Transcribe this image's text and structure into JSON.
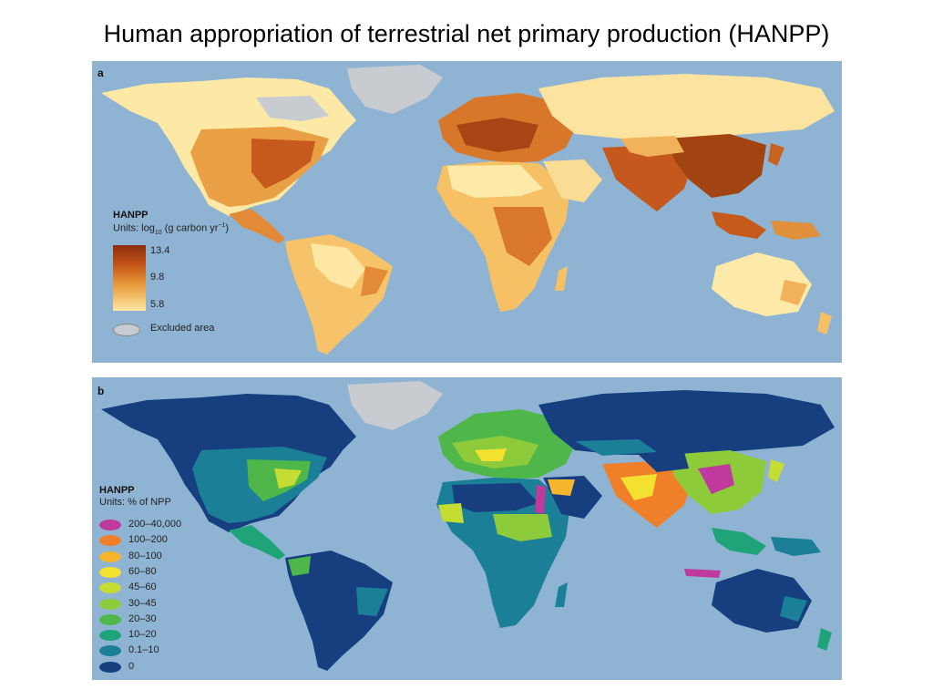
{
  "title": "Human appropriation of terrestrial net primary production (HANPP)",
  "panel_a": {
    "letter": "a",
    "legend_title": "HANPP",
    "units_prefix": "Units: log",
    "units_sub": "10",
    "units_mid": " (g carbon yr",
    "units_sup": "−1",
    "units_suffix": ")",
    "scale_labels": [
      "13.4",
      "9.8",
      "5.8"
    ],
    "excluded_label": "Excluded area",
    "colors": {
      "ocean": "#8fb4d3",
      "excluded": "#c8ccd1",
      "low": "#fde7a2",
      "mid": "#e99a3b",
      "high": "#8a2c0c"
    }
  },
  "panel_b": {
    "letter": "b",
    "legend_title": "HANPP",
    "units": "Units: % of NPP",
    "items": [
      {
        "label": "200–40,000",
        "color": "#c0399d"
      },
      {
        "label": "100–200",
        "color": "#f07f2a"
      },
      {
        "label": "80–100",
        "color": "#f5b52c"
      },
      {
        "label": "60–80",
        "color": "#f2e22f"
      },
      {
        "label": "45–60",
        "color": "#c5dc32"
      },
      {
        "label": "30–45",
        "color": "#8ecb3a"
      },
      {
        "label": "20–30",
        "color": "#4fb64a"
      },
      {
        "label": "10–20",
        "color": "#1fa47a"
      },
      {
        "label": "0.1–10",
        "color": "#1a7f97"
      },
      {
        "label": "0",
        "color": "#173f80"
      }
    ]
  }
}
